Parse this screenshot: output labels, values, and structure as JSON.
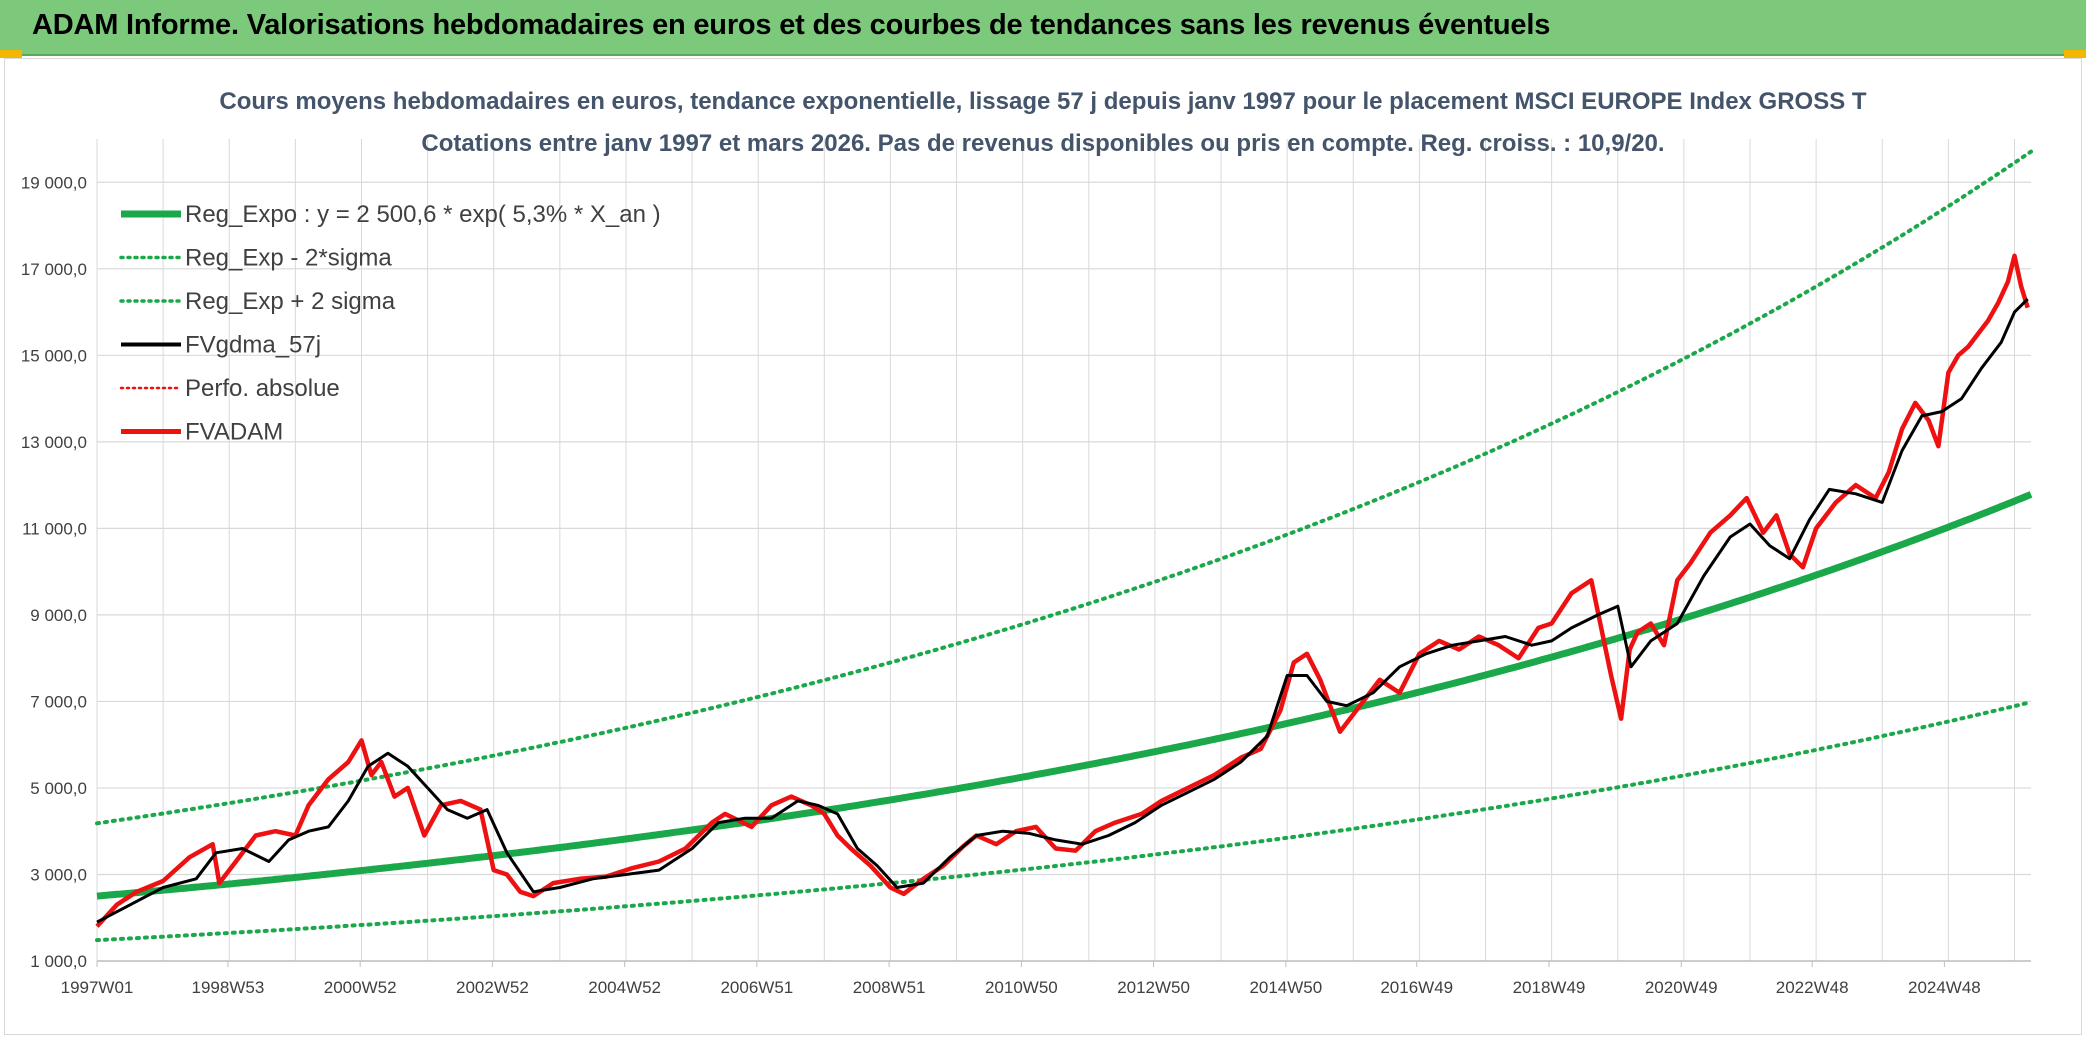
{
  "header": {
    "title": "ADAM Informe. Valorisations hebdomadaires en euros et des courbes de tendances sans les revenus éventuels"
  },
  "colors": {
    "header_bg": "#7dc97c",
    "accent_corner": "#f2b705",
    "trend_green": "#1aa84a",
    "fv_black": "#000000",
    "fv_red": "#ee1111",
    "grid": "#d9d9d9",
    "title_text": "#44546a"
  },
  "chart_data": {
    "type": "line",
    "title_lines": [
      "Cours moyens hebdomadaires en euros, tendance exponentielle, lissage 57 j depuis janv 1997 pour le placement MSCI EUROPE Index GROSS T",
      "Cotations entre janv 1997 et mars 2026. Pas de revenus disponibles ou pris en compte. Reg. croiss. : 10,9/20."
    ],
    "xlabel": "",
    "ylabel": "",
    "xlim": [
      1997.0,
      2026.25
    ],
    "ylim": [
      1000,
      20000
    ],
    "y_ticks": [
      1000,
      3000,
      5000,
      7000,
      9000,
      11000,
      13000,
      15000,
      17000,
      19000
    ],
    "y_tick_labels": [
      "1 000,0",
      "3 000,0",
      "5 000,0",
      "7 000,0",
      "9 000,0",
      "11 000,0",
      "13 000,0",
      "15 000,0",
      "17 000,0",
      "19 000,0"
    ],
    "x_ticks": [
      1997.0,
      1998.98,
      2000.98,
      2002.98,
      2004.98,
      2006.98,
      2008.98,
      2010.98,
      2012.98,
      2014.98,
      2016.96,
      2018.96,
      2020.96,
      2022.94,
      2024.94
    ],
    "x_tick_labels": [
      "1997W01",
      "1998W53",
      "2000W52",
      "2002W52",
      "2004W52",
      "2006W51",
      "2008W51",
      "2010W50",
      "2012W50",
      "2014W50",
      "2016W49",
      "2018W49",
      "2020W49",
      "2022W48",
      "2024W48"
    ],
    "grid": true,
    "legend_position": "top-left",
    "regression": {
      "a": 2500.6,
      "rate": 0.053,
      "sigma_factor_low": 0.5927,
      "sigma_factor_high": 1.6725
    },
    "series": [
      {
        "name": "Reg_Expo : y = 2 500,6 * exp( 5,3% *  X_an )",
        "style": "solid-thick",
        "color": "#1aa84a",
        "kind": "trend"
      },
      {
        "name": "Reg_Exp - 2*sigma",
        "style": "dotted",
        "color": "#1aa84a",
        "kind": "trend_low"
      },
      {
        "name": "Reg_Exp + 2 sigma",
        "style": "dotted",
        "color": "#1aa84a",
        "kind": "trend_high"
      },
      {
        "name": "FVgdma_57j",
        "style": "solid",
        "color": "#000000",
        "kind": "smooth",
        "x": [
          1997.0,
          1997.5,
          1998.0,
          1998.5,
          1998.8,
          1999.2,
          1999.6,
          1999.9,
          2000.2,
          2000.5,
          2000.8,
          2001.1,
          2001.4,
          2001.7,
          2002.0,
          2002.3,
          2002.6,
          2002.9,
          2003.2,
          2003.6,
          2004.0,
          2004.5,
          2005.0,
          2005.5,
          2006.0,
          2006.4,
          2006.8,
          2007.2,
          2007.6,
          2007.9,
          2008.2,
          2008.5,
          2008.8,
          2009.1,
          2009.5,
          2009.9,
          2010.3,
          2010.7,
          2011.1,
          2011.5,
          2011.9,
          2012.3,
          2012.7,
          2013.1,
          2013.5,
          2013.9,
          2014.3,
          2014.7,
          2015.0,
          2015.3,
          2015.6,
          2015.9,
          2016.3,
          2016.7,
          2017.1,
          2017.5,
          2017.9,
          2018.3,
          2018.7,
          2019.0,
          2019.3,
          2019.7,
          2020.0,
          2020.2,
          2020.5,
          2020.9,
          2021.3,
          2021.7,
          2022.0,
          2022.3,
          2022.6,
          2022.9,
          2023.2,
          2023.6,
          2024.0,
          2024.3,
          2024.6,
          2024.9,
          2025.2,
          2025.5,
          2025.8,
          2026.0,
          2026.2
        ],
        "y": [
          1900,
          2300,
          2700,
          2900,
          3500,
          3600,
          3300,
          3800,
          4000,
          4100,
          4700,
          5500,
          5800,
          5500,
          5000,
          4500,
          4300,
          4500,
          3500,
          2600,
          2700,
          2900,
          3000,
          3100,
          3600,
          4200,
          4300,
          4300,
          4700,
          4600,
          4400,
          3600,
          3200,
          2700,
          2800,
          3400,
          3900,
          4000,
          3950,
          3800,
          3700,
          3900,
          4200,
          4600,
          4900,
          5200,
          5600,
          6200,
          7600,
          7600,
          7000,
          6900,
          7200,
          7800,
          8100,
          8300,
          8400,
          8500,
          8300,
          8400,
          8700,
          9000,
          9200,
          7800,
          8400,
          8800,
          9900,
          10800,
          11100,
          10600,
          10300,
          11200,
          11900,
          11800,
          11600,
          12800,
          13600,
          13700,
          14000,
          14700,
          15300,
          16000,
          16300
        ]
      },
      {
        "name": "Perfo. absolue",
        "style": "dotted",
        "color": "#ee1111",
        "kind": "perf"
      },
      {
        "name": "FVADAM",
        "style": "solid-thick",
        "color": "#ee1111",
        "kind": "raw",
        "x": [
          1997.0,
          1997.3,
          1997.6,
          1998.0,
          1998.4,
          1998.75,
          1998.85,
          1999.1,
          1999.4,
          1999.7,
          2000.0,
          2000.2,
          2000.5,
          2000.8,
          2001.0,
          2001.15,
          2001.3,
          2001.5,
          2001.7,
          2001.95,
          2002.2,
          2002.5,
          2002.8,
          2003.0,
          2003.2,
          2003.4,
          2003.6,
          2003.9,
          2004.3,
          2004.7,
          2005.1,
          2005.5,
          2005.9,
          2006.3,
          2006.5,
          2006.9,
          2007.2,
          2007.5,
          2007.8,
          2008.0,
          2008.2,
          2008.4,
          2008.7,
          2009.0,
          2009.2,
          2009.5,
          2009.8,
          2010.1,
          2010.3,
          2010.6,
          2010.9,
          2011.2,
          2011.5,
          2011.8,
          2012.1,
          2012.4,
          2012.8,
          2013.1,
          2013.5,
          2013.9,
          2014.3,
          2014.6,
          2014.9,
          2015.1,
          2015.3,
          2015.5,
          2015.8,
          2016.1,
          2016.4,
          2016.7,
          2017.0,
          2017.3,
          2017.6,
          2017.9,
          2018.2,
          2018.5,
          2018.8,
          2019.0,
          2019.3,
          2019.6,
          2019.9,
          2020.05,
          2020.18,
          2020.3,
          2020.5,
          2020.7,
          2020.9,
          2021.1,
          2021.4,
          2021.7,
          2021.95,
          2022.2,
          2022.4,
          2022.6,
          2022.8,
          2023.0,
          2023.3,
          2023.6,
          2023.9,
          2024.1,
          2024.3,
          2024.5,
          2024.7,
          2024.85,
          2025.0,
          2025.15,
          2025.3,
          2025.45,
          2025.6,
          2025.75,
          2025.9,
          2026.0,
          2026.1,
          2026.2
        ],
        "y": [
          1800,
          2300,
          2600,
          2850,
          3400,
          3700,
          2800,
          3300,
          3900,
          4000,
          3900,
          4600,
          5200,
          5600,
          6100,
          5300,
          5600,
          4800,
          5000,
          3900,
          4600,
          4700,
          4500,
          3100,
          3000,
          2600,
          2500,
          2800,
          2900,
          2950,
          3150,
          3300,
          3600,
          4200,
          4400,
          4100,
          4600,
          4800,
          4600,
          4400,
          3900,
          3600,
          3200,
          2700,
          2550,
          2900,
          3200,
          3650,
          3900,
          3700,
          4000,
          4100,
          3600,
          3550,
          4000,
          4200,
          4400,
          4700,
          5000,
          5300,
          5700,
          5900,
          6800,
          7900,
          8100,
          7500,
          6300,
          6900,
          7500,
          7200,
          8100,
          8400,
          8200,
          8500,
          8300,
          8000,
          8700,
          8800,
          9500,
          9800,
          7600,
          6600,
          8200,
          8600,
          8800,
          8300,
          9800,
          10200,
          10900,
          11300,
          11700,
          10900,
          11300,
          10400,
          10100,
          11000,
          11600,
          12000,
          11700,
          12300,
          13300,
          13900,
          13500,
          12900,
          14600,
          15000,
          15200,
          15500,
          15800,
          16200,
          16700,
          17300,
          16600,
          16100
        ]
      }
    ]
  }
}
